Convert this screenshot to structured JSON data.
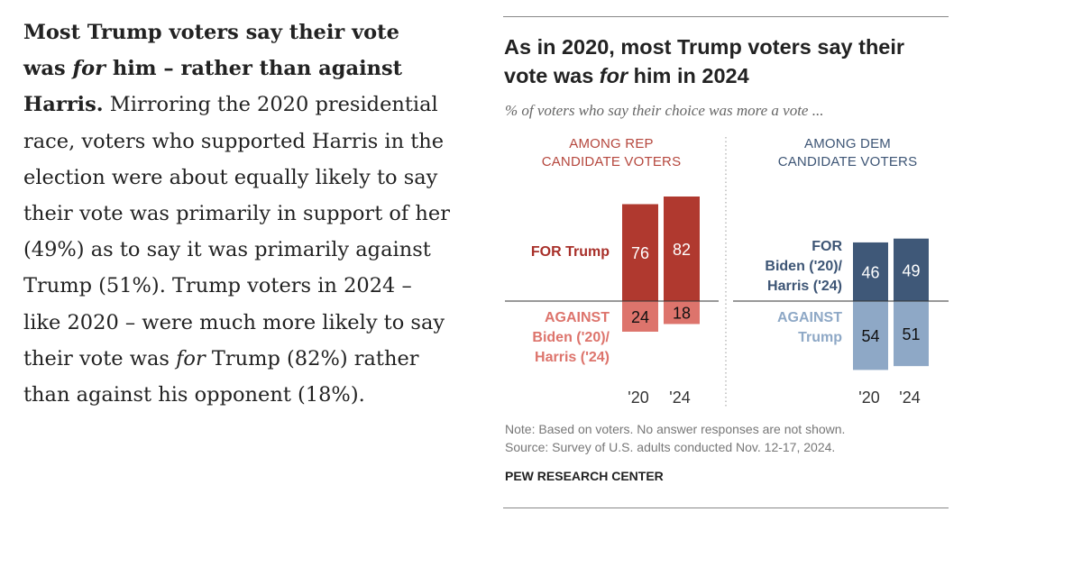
{
  "article": {
    "lines": [
      [
        {
          "t": "Most Trump voters say their vote",
          "b": true
        }
      ],
      [
        {
          "t": "was ",
          "b": true
        },
        {
          "t": "for",
          "b": true,
          "i": true
        },
        {
          "t": " him – rather than against",
          "b": true
        }
      ],
      [
        {
          "t": "Harris.",
          "b": true
        },
        {
          "t": " Mirroring the 2020 presidential"
        }
      ],
      [
        {
          "t": "race, voters who supported Harris in the"
        }
      ],
      [
        {
          "t": "election were about equally likely to say"
        }
      ],
      [
        {
          "t": "their vote was primarily in support of her"
        }
      ],
      [
        {
          "t": "(49%) as to say it was primarily against"
        }
      ],
      [
        {
          "t": "Trump (51%). Trump voters in 2024 –"
        }
      ],
      [
        {
          "t": "like 2020 – were much more likely to say"
        }
      ],
      [
        {
          "t": "their vote was "
        },
        {
          "t": "for",
          "i": true
        },
        {
          "t": " Trump (82%) rather"
        }
      ],
      [
        {
          "t": "than against his opponent (18%)."
        }
      ]
    ]
  },
  "chart": {
    "title_line1": "As in 2020, most Trump voters say their",
    "title_line2_pre": "vote was ",
    "title_line2_italic": "for",
    "title_line2_post": " him in 2024",
    "subtitle": "% of voters who say their choice was more a vote ...",
    "note": "Note: Based on voters. No answer responses are not shown.",
    "source": "Source: Survey of U.S. adults conducted Nov. 12-17, 2024.",
    "credit": "PEW RESEARCH CENTER"
  },
  "chart_data": {
    "type": "bar",
    "categories": [
      "'20",
      "'24"
    ],
    "panels": [
      {
        "header": [
          "AMONG REP",
          "CANDIDATE VOTERS"
        ],
        "for_label": [
          "FOR Trump"
        ],
        "against_label": [
          "AGAINST",
          "Biden ('20)/",
          "Harris ('24)"
        ],
        "for_values": [
          76,
          82
        ],
        "against_values": [
          24,
          18
        ],
        "colors": {
          "header": "#b5473d",
          "for": "#b0392f",
          "against": "#dd746c",
          "for_label": "#a8302a",
          "against_label": "#dd746c"
        }
      },
      {
        "header": [
          "AMONG DEM",
          "CANDIDATE VOTERS"
        ],
        "for_label": [
          "FOR",
          "Biden ('20)/",
          "Harris ('24)"
        ],
        "against_label": [
          "AGAINST",
          "Trump"
        ],
        "for_values": [
          46,
          49
        ],
        "against_values": [
          54,
          51
        ],
        "colors": {
          "header": "#3d5575",
          "for": "#3f5878",
          "against": "#8ea8c6",
          "for_label": "#3d5575",
          "against_label": "#8ea8c6"
        }
      }
    ]
  }
}
